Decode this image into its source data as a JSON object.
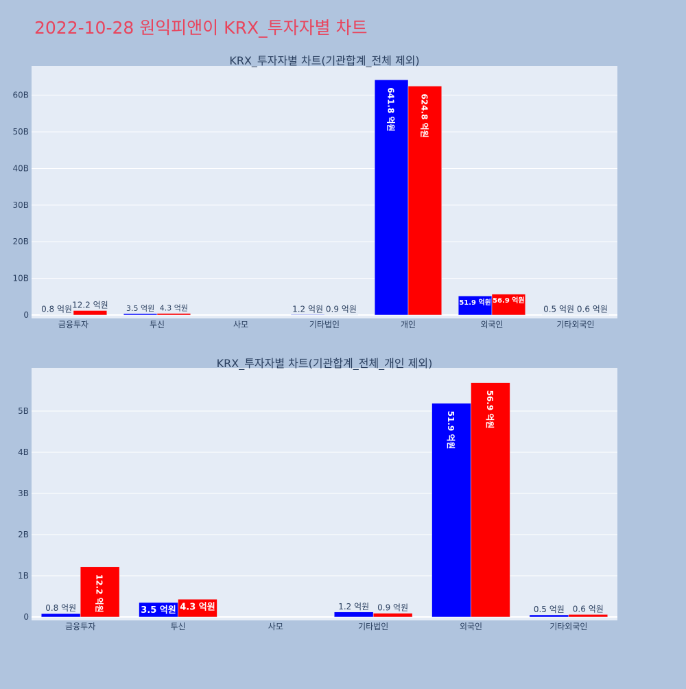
{
  "page_title": "2022-10-28 원익피앤이 KRX_투자자별 차트",
  "chart_data": [
    {
      "type": "bar",
      "title": "KRX_투자자별 차트(기관합계_전체 제외)",
      "categories": [
        "금융투자",
        "투신",
        "사모",
        "기타법인",
        "개인",
        "외국인",
        "기타외국인"
      ],
      "series": [
        {
          "values": [
            80000000,
            350000000,
            0,
            120000000,
            64180000000,
            5190000000,
            50000000
          ],
          "labels": [
            "0.8 억원",
            "3.5 억원",
            "",
            "1.2 억원",
            "641.8 억원",
            "51.9 억원",
            "0.5 억원"
          ],
          "color": "#0000ff"
        },
        {
          "values": [
            1220000000,
            430000000,
            0,
            90000000,
            62480000000,
            5690000000,
            60000000
          ],
          "labels": [
            "12.2 억원",
            "4.3 억원",
            "",
            "0.9 억원",
            "624.8 억원",
            "56.9 억원",
            "0.6 억원"
          ],
          "color": "#ff0000"
        }
      ],
      "ylim": [
        0,
        68000000000
      ],
      "yticks": [
        0,
        10000000000,
        20000000000,
        30000000000,
        40000000000,
        50000000000,
        60000000000
      ],
      "ytick_labels": [
        "0",
        "10B",
        "20B",
        "30B",
        "40B",
        "50B",
        "60B"
      ],
      "grid": true
    },
    {
      "type": "bar",
      "title": "KRX_투자자별 차트(기관합계_전체_개인 제외)",
      "categories": [
        "금융투자",
        "투신",
        "사모",
        "기타법인",
        "외국인",
        "기타외국인"
      ],
      "series": [
        {
          "values": [
            80000000,
            350000000,
            0,
            120000000,
            5190000000,
            50000000
          ],
          "labels": [
            "0.8 억원",
            "3.5 억원",
            "",
            "1.2 억원",
            "51.9 억원",
            "0.5 억원"
          ],
          "color": "#0000ff"
        },
        {
          "values": [
            1220000000,
            430000000,
            0,
            90000000,
            5690000000,
            60000000
          ],
          "labels": [
            "12.2 억원",
            "4.3 억원",
            "",
            "0.9 억원",
            "56.9 억원",
            "0.6 억원"
          ],
          "color": "#ff0000"
        }
      ],
      "ylim": [
        0,
        6050000000
      ],
      "yticks": [
        0,
        1000000000,
        2000000000,
        3000000000,
        4000000000,
        5000000000
      ],
      "ytick_labels": [
        "0",
        "1B",
        "2B",
        "3B",
        "4B",
        "5B"
      ],
      "grid": true
    }
  ]
}
